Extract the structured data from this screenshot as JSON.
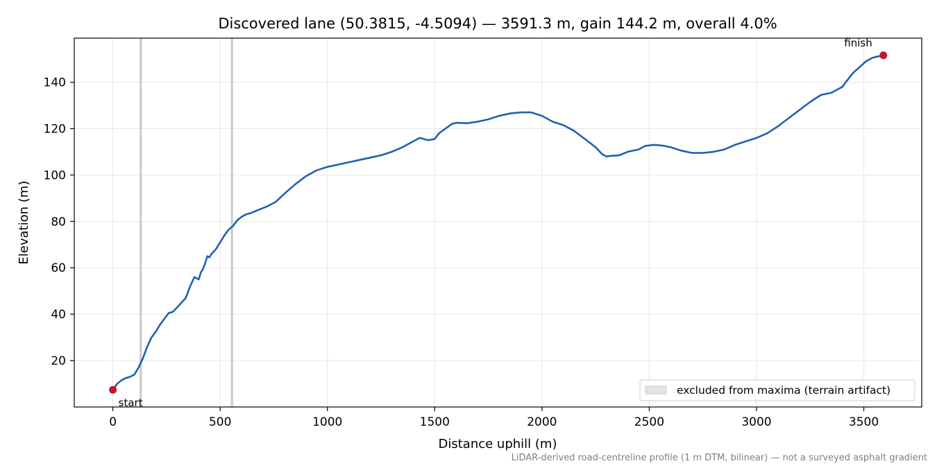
{
  "chart_data": {
    "type": "line",
    "title": "Discovered lane (50.3815, -4.5094) — 3591.3 m, gain 144.2 m, overall 4.0%",
    "xlabel": "Distance uphill (m)",
    "ylabel": "Elevation (m)",
    "xlim": [
      -180,
      3770
    ],
    "ylim": [
      0,
      159
    ],
    "xticks": [
      0,
      500,
      1000,
      1500,
      2000,
      2500,
      3000,
      3500
    ],
    "yticks": [
      20,
      40,
      60,
      80,
      100,
      120,
      140
    ],
    "grid": true,
    "footnote": "LiDAR-derived road-centreline profile (1 m DTM, bilinear) — not a surveyed asphalt gradient",
    "colors": {
      "line": "#2060b0",
      "markers": "#c0182a",
      "excluded_band": "#c8c8c8",
      "legend_swatch": "#e4e4e2"
    },
    "legend": {
      "position": "lower-right",
      "entries": [
        "excluded from maxima (terrain artifact)"
      ]
    },
    "excluded_zones": [
      {
        "x": 130
      },
      {
        "x": 555
      }
    ],
    "series": [
      {
        "x": [
          0,
          20,
          40,
          60,
          80,
          100,
          120,
          140,
          160,
          180,
          200,
          220,
          240,
          260,
          280,
          300,
          320,
          340,
          360,
          380,
          400,
          410,
          420,
          430,
          440,
          450,
          460,
          470,
          480,
          500,
          520,
          540,
          560,
          580,
          600,
          620,
          640,
          680,
          720,
          760,
          800,
          850,
          900,
          950,
          1000,
          1050,
          1100,
          1150,
          1200,
          1250,
          1300,
          1350,
          1400,
          1430,
          1450,
          1470,
          1500,
          1520,
          1550,
          1580,
          1600,
          1650,
          1700,
          1750,
          1800,
          1850,
          1900,
          1950,
          2000,
          2050,
          2100,
          2150,
          2200,
          2250,
          2280,
          2300,
          2330,
          2360,
          2400,
          2450,
          2480,
          2520,
          2560,
          2600,
          2650,
          2700,
          2750,
          2800,
          2850,
          2900,
          2950,
          3000,
          3050,
          3100,
          3150,
          3200,
          3250,
          3300,
          3350,
          3400,
          3420,
          3450,
          3480,
          3510,
          3540,
          3560,
          3591.3
        ],
        "y": [
          7.4,
          10,
          11.5,
          12.5,
          13,
          14,
          17,
          21,
          26,
          30,
          32.5,
          35.5,
          38,
          40.5,
          41,
          43,
          45,
          47,
          52,
          56,
          55,
          58,
          59.5,
          62,
          65,
          64.5,
          66,
          67,
          68,
          71,
          74,
          76.5,
          78,
          80.5,
          82,
          83,
          83.5,
          85,
          86.5,
          88.5,
          92,
          96,
          99.5,
          102,
          103.5,
          104.5,
          105.5,
          106.5,
          107.5,
          108.5,
          110,
          112,
          114.5,
          116,
          115.5,
          115,
          115.5,
          118,
          120,
          122,
          122.5,
          122.3,
          123,
          124,
          125.5,
          126.5,
          127,
          127,
          125.5,
          123,
          121.5,
          119,
          115.5,
          112,
          109,
          108,
          108.3,
          108.5,
          110,
          111,
          112.5,
          113,
          112.7,
          112,
          110.5,
          109.5,
          109.5,
          110,
          111,
          113,
          114.5,
          116,
          118,
          121,
          124.5,
          128,
          131.5,
          134.5,
          135.5,
          138,
          140.5,
          144,
          146.5,
          149,
          150.5,
          151,
          151.6
        ]
      }
    ],
    "annotations": [
      {
        "text": "start",
        "x": 0,
        "y": 7.4
      },
      {
        "text": "finish",
        "x": 3591.3,
        "y": 151.6
      }
    ]
  }
}
